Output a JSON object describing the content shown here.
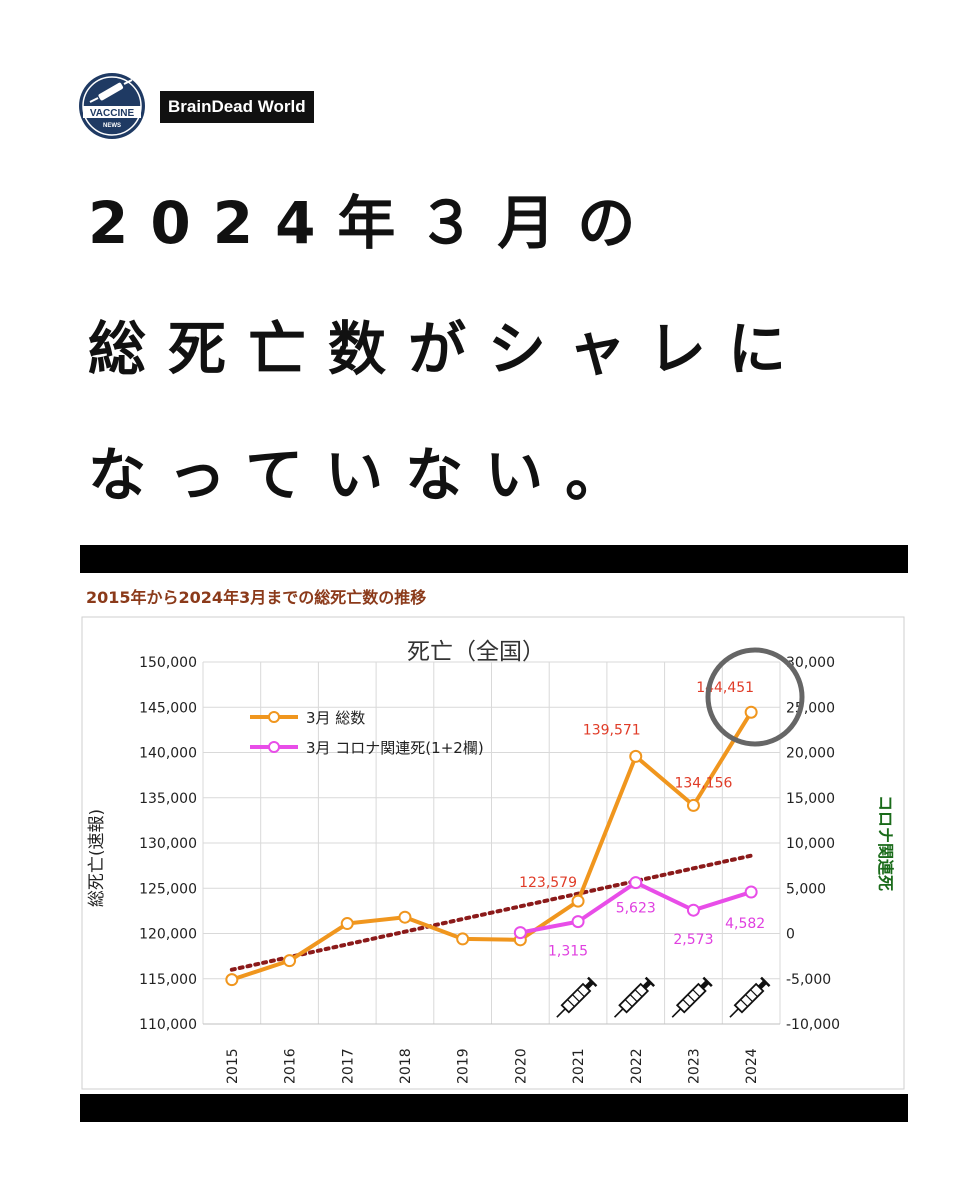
{
  "brand": {
    "logo_top_text": "VACCINE",
    "logo_bottom_text": "NEWS",
    "tag": "BrainDead World",
    "colors": {
      "logo_bg": "#1f3a63",
      "tag_bg": "#111111"
    }
  },
  "headline": {
    "lines": [
      "2024年３月の",
      "総死亡数がシャレに",
      "なっていない。"
    ]
  },
  "chart_heading": "2015年から2024年3月までの総死亡数の推移",
  "chart_data": {
    "type": "line",
    "title": "死亡（全国）",
    "ylabel": "総死亡(速報)",
    "y2label": "コロナ関連死",
    "categories": [
      "2015",
      "2016",
      "2017",
      "2018",
      "2019",
      "2020",
      "2021",
      "2022",
      "2023",
      "2024"
    ],
    "ylim": [
      110000,
      150000
    ],
    "y2lim": [
      -10000,
      30000
    ],
    "yticks": [
      "110,000",
      "115,000",
      "120,000",
      "125,000",
      "130,000",
      "135,000",
      "140,000",
      "145,000",
      "150,000"
    ],
    "y2ticks": [
      "-10,000",
      "-5,000",
      "0",
      "5,000",
      "10,000",
      "15,000",
      "20,000",
      "25,000",
      "30,000"
    ],
    "grid": true,
    "legend_position": "top-left",
    "series": [
      {
        "name": "3月 総数",
        "axis": "left",
        "color": "#f0961e",
        "values": [
          114900,
          117000,
          121100,
          121800,
          119400,
          119300,
          123579,
          139571,
          134156,
          144451
        ],
        "labels": [
          null,
          null,
          null,
          null,
          null,
          null,
          "123,579",
          "139,571",
          "134,156",
          "144,451"
        ],
        "label_color": "#e03c28"
      },
      {
        "name": "3月 コロナ関連死(1+2欄)",
        "axis": "right",
        "color": "#e84de8",
        "values": [
          null,
          null,
          null,
          null,
          null,
          100,
          1315,
          5623,
          2573,
          4582
        ],
        "labels": [
          null,
          null,
          null,
          null,
          null,
          null,
          "1,315",
          "5,623",
          "2,573",
          "4,582"
        ],
        "label_color": "#e040e0"
      }
    ],
    "trendline": {
      "color": "#8b1a1a",
      "style": "dotted",
      "from": [
        "2015",
        116000
      ],
      "to": [
        "2024",
        128600
      ]
    },
    "annotations": {
      "circled_value": "144,451",
      "syringe_icons_on": [
        "2021",
        "2022",
        "2023",
        "2024"
      ]
    }
  }
}
